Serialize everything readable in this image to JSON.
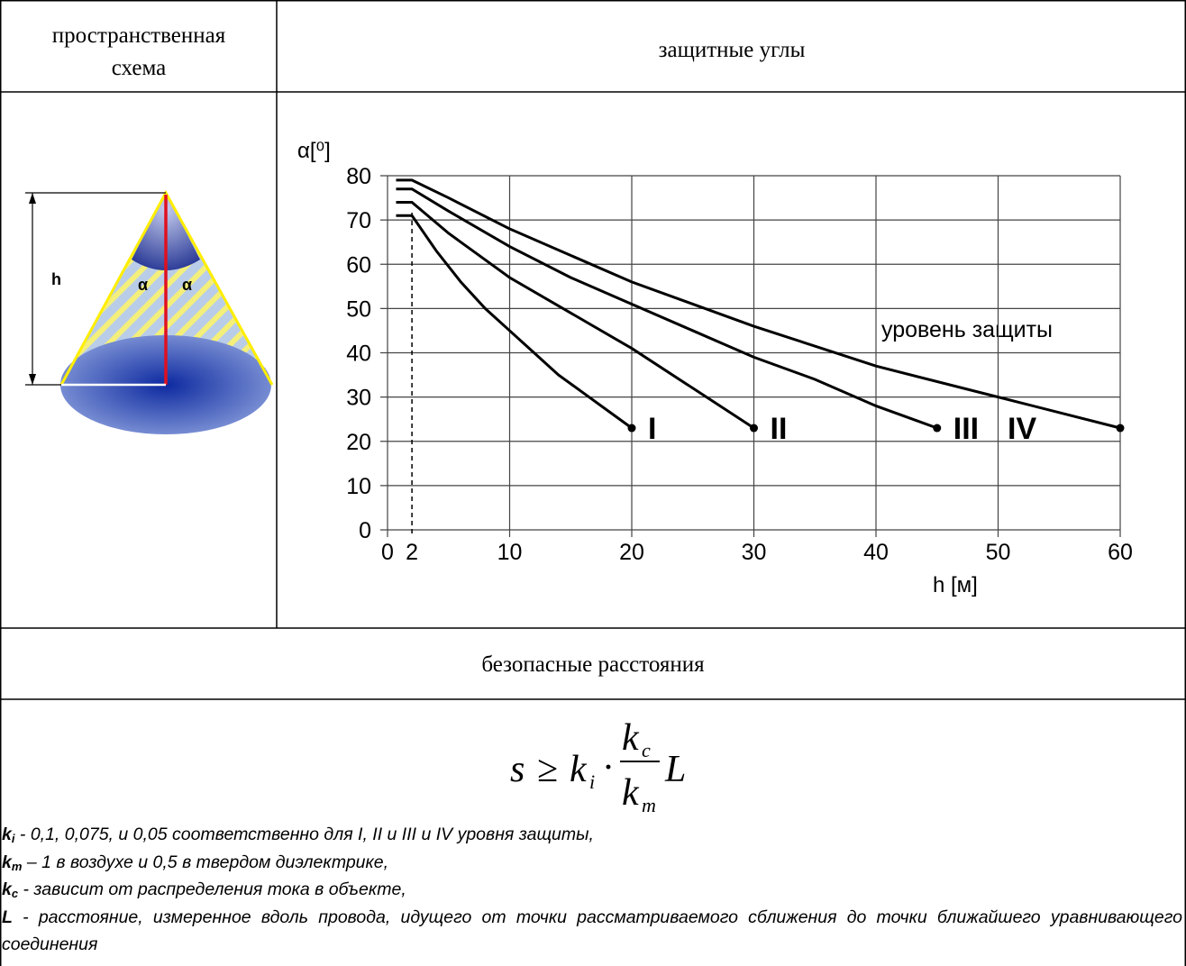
{
  "header": {
    "left": [
      "пространственная",
      "схема"
    ],
    "right": "защитные углы"
  },
  "schematic": {
    "height_label": "h",
    "angle_labels": [
      "α",
      "α"
    ]
  },
  "chart_data": {
    "type": "line",
    "ylabel": "α[⁰]",
    "xlabel": "h [м]",
    "annotation": "уровень защиты",
    "xlim": [
      0,
      60
    ],
    "ylim": [
      0,
      80
    ],
    "xticks": [
      0,
      10,
      20,
      30,
      40,
      50,
      60
    ],
    "yticks": [
      0,
      10,
      20,
      30,
      40,
      50,
      60,
      70,
      80
    ],
    "reference_x": 2,
    "grid": true,
    "series": [
      {
        "name": "I",
        "color": "#000000",
        "x": [
          0.7,
          2,
          4,
          6,
          8,
          10,
          12,
          14,
          16,
          18,
          20
        ],
        "values": [
          71,
          71,
          63,
          56,
          50,
          45,
          40,
          35,
          31,
          27,
          23
        ]
      },
      {
        "name": "II",
        "color": "#000000",
        "x": [
          0.7,
          2,
          5,
          10,
          15,
          20,
          25,
          30
        ],
        "values": [
          74,
          74,
          67,
          57,
          49,
          41,
          32,
          23
        ]
      },
      {
        "name": "III",
        "color": "#000000",
        "x": [
          0.7,
          2,
          5,
          10,
          15,
          20,
          25,
          30,
          35,
          40,
          45
        ],
        "values": [
          77,
          77,
          72,
          64,
          57,
          51,
          45,
          39,
          34,
          28,
          23
        ]
      },
      {
        "name": "IV",
        "color": "#000000",
        "x": [
          0.7,
          2,
          5,
          10,
          20,
          30,
          40,
          50,
          60
        ],
        "values": [
          79,
          79,
          75,
          68,
          56,
          46,
          37,
          30,
          23
        ]
      }
    ]
  },
  "section": "безопасные расстояния",
  "formula": {
    "lhs": "s",
    "rel": "≥",
    "k1": "k",
    "k1_sub": "i",
    "dot": "·",
    "num": "k",
    "num_sub": "c",
    "den": "k",
    "den_sub": "m",
    "rhs": "L"
  },
  "notes": [
    {
      "term": "k",
      "sub": "i",
      "text": " - 0,1, 0,075, и 0,05 соответственно для I, II и III и IV уровня защиты,"
    },
    {
      "term": "k",
      "sub": "m",
      "text": " – 1 в воздухе и 0,5 в твердом диэлектрике,"
    },
    {
      "term": "k",
      "sub": "c",
      "text": " - зависит от распределения тока в объекте,"
    },
    {
      "term": "L",
      "sub": null,
      "text": " - расстояние, измеренное вдоль провода, идущего от точки рассматриваемого сближения до точки ближайшего уравнивающего соединения"
    }
  ]
}
